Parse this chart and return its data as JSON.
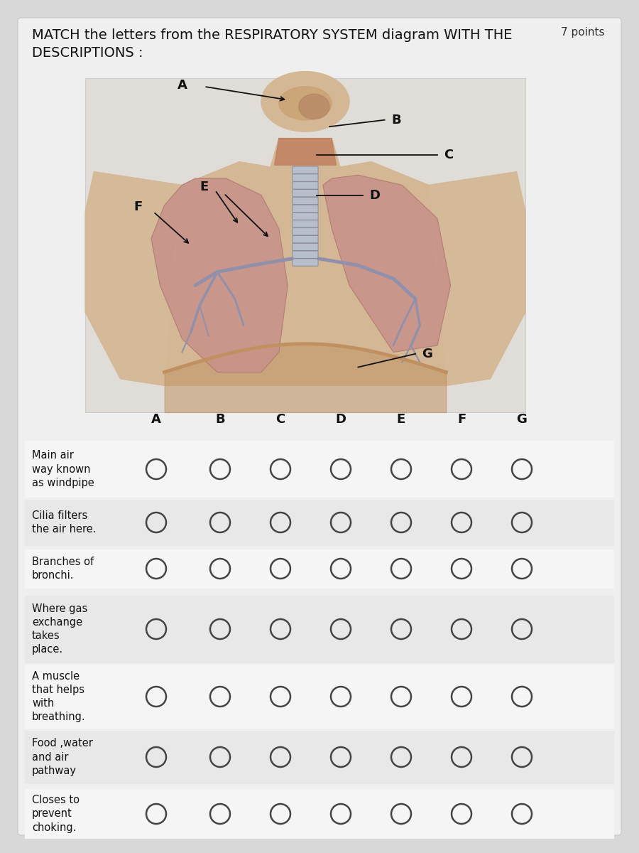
{
  "title_line1": "MATCH the letters from the RESPIRATORY SYSTEM diagram WITH THE",
  "title_line2": "DESCRIPTIONS :",
  "points_text": "7 points",
  "bg_color": "#d8d8d8",
  "panel_bg": "#e8e4e0",
  "white_bg": "#f0efee",
  "columns": [
    "A",
    "B",
    "C",
    "D",
    "E",
    "F",
    "G"
  ],
  "rows": [
    [
      "Main air",
      "way known",
      "as windpipe"
    ],
    [
      "Cilia filters",
      "the air here."
    ],
    [
      "Branches of",
      "bronchi."
    ],
    [
      "Where gas",
      "exchange",
      "takes",
      "place."
    ],
    [
      "A muscle",
      "that helps",
      "with",
      "breathing."
    ],
    [
      "Food ,water",
      "and air",
      "pathway"
    ],
    [
      "Closes to",
      "prevent",
      "choking."
    ]
  ],
  "title_fontsize": 14,
  "points_fontsize": 11,
  "col_label_fontsize": 13,
  "row_label_fontsize": 10.5,
  "circle_color": "#444444",
  "circle_lw": 1.8,
  "skin_color": "#d4b896",
  "skin_dark": "#c9a87a",
  "lung_color": "#c8938a",
  "lung_edge": "#b07870",
  "diaphragm_color": "#c09060",
  "trachea_color": "#b8bfcc",
  "trachea_edge": "#888899",
  "bronchi_color": "#9090aa",
  "throat_color": "#c08060",
  "nose_color": "#c9a070",
  "label_color": "#111111"
}
